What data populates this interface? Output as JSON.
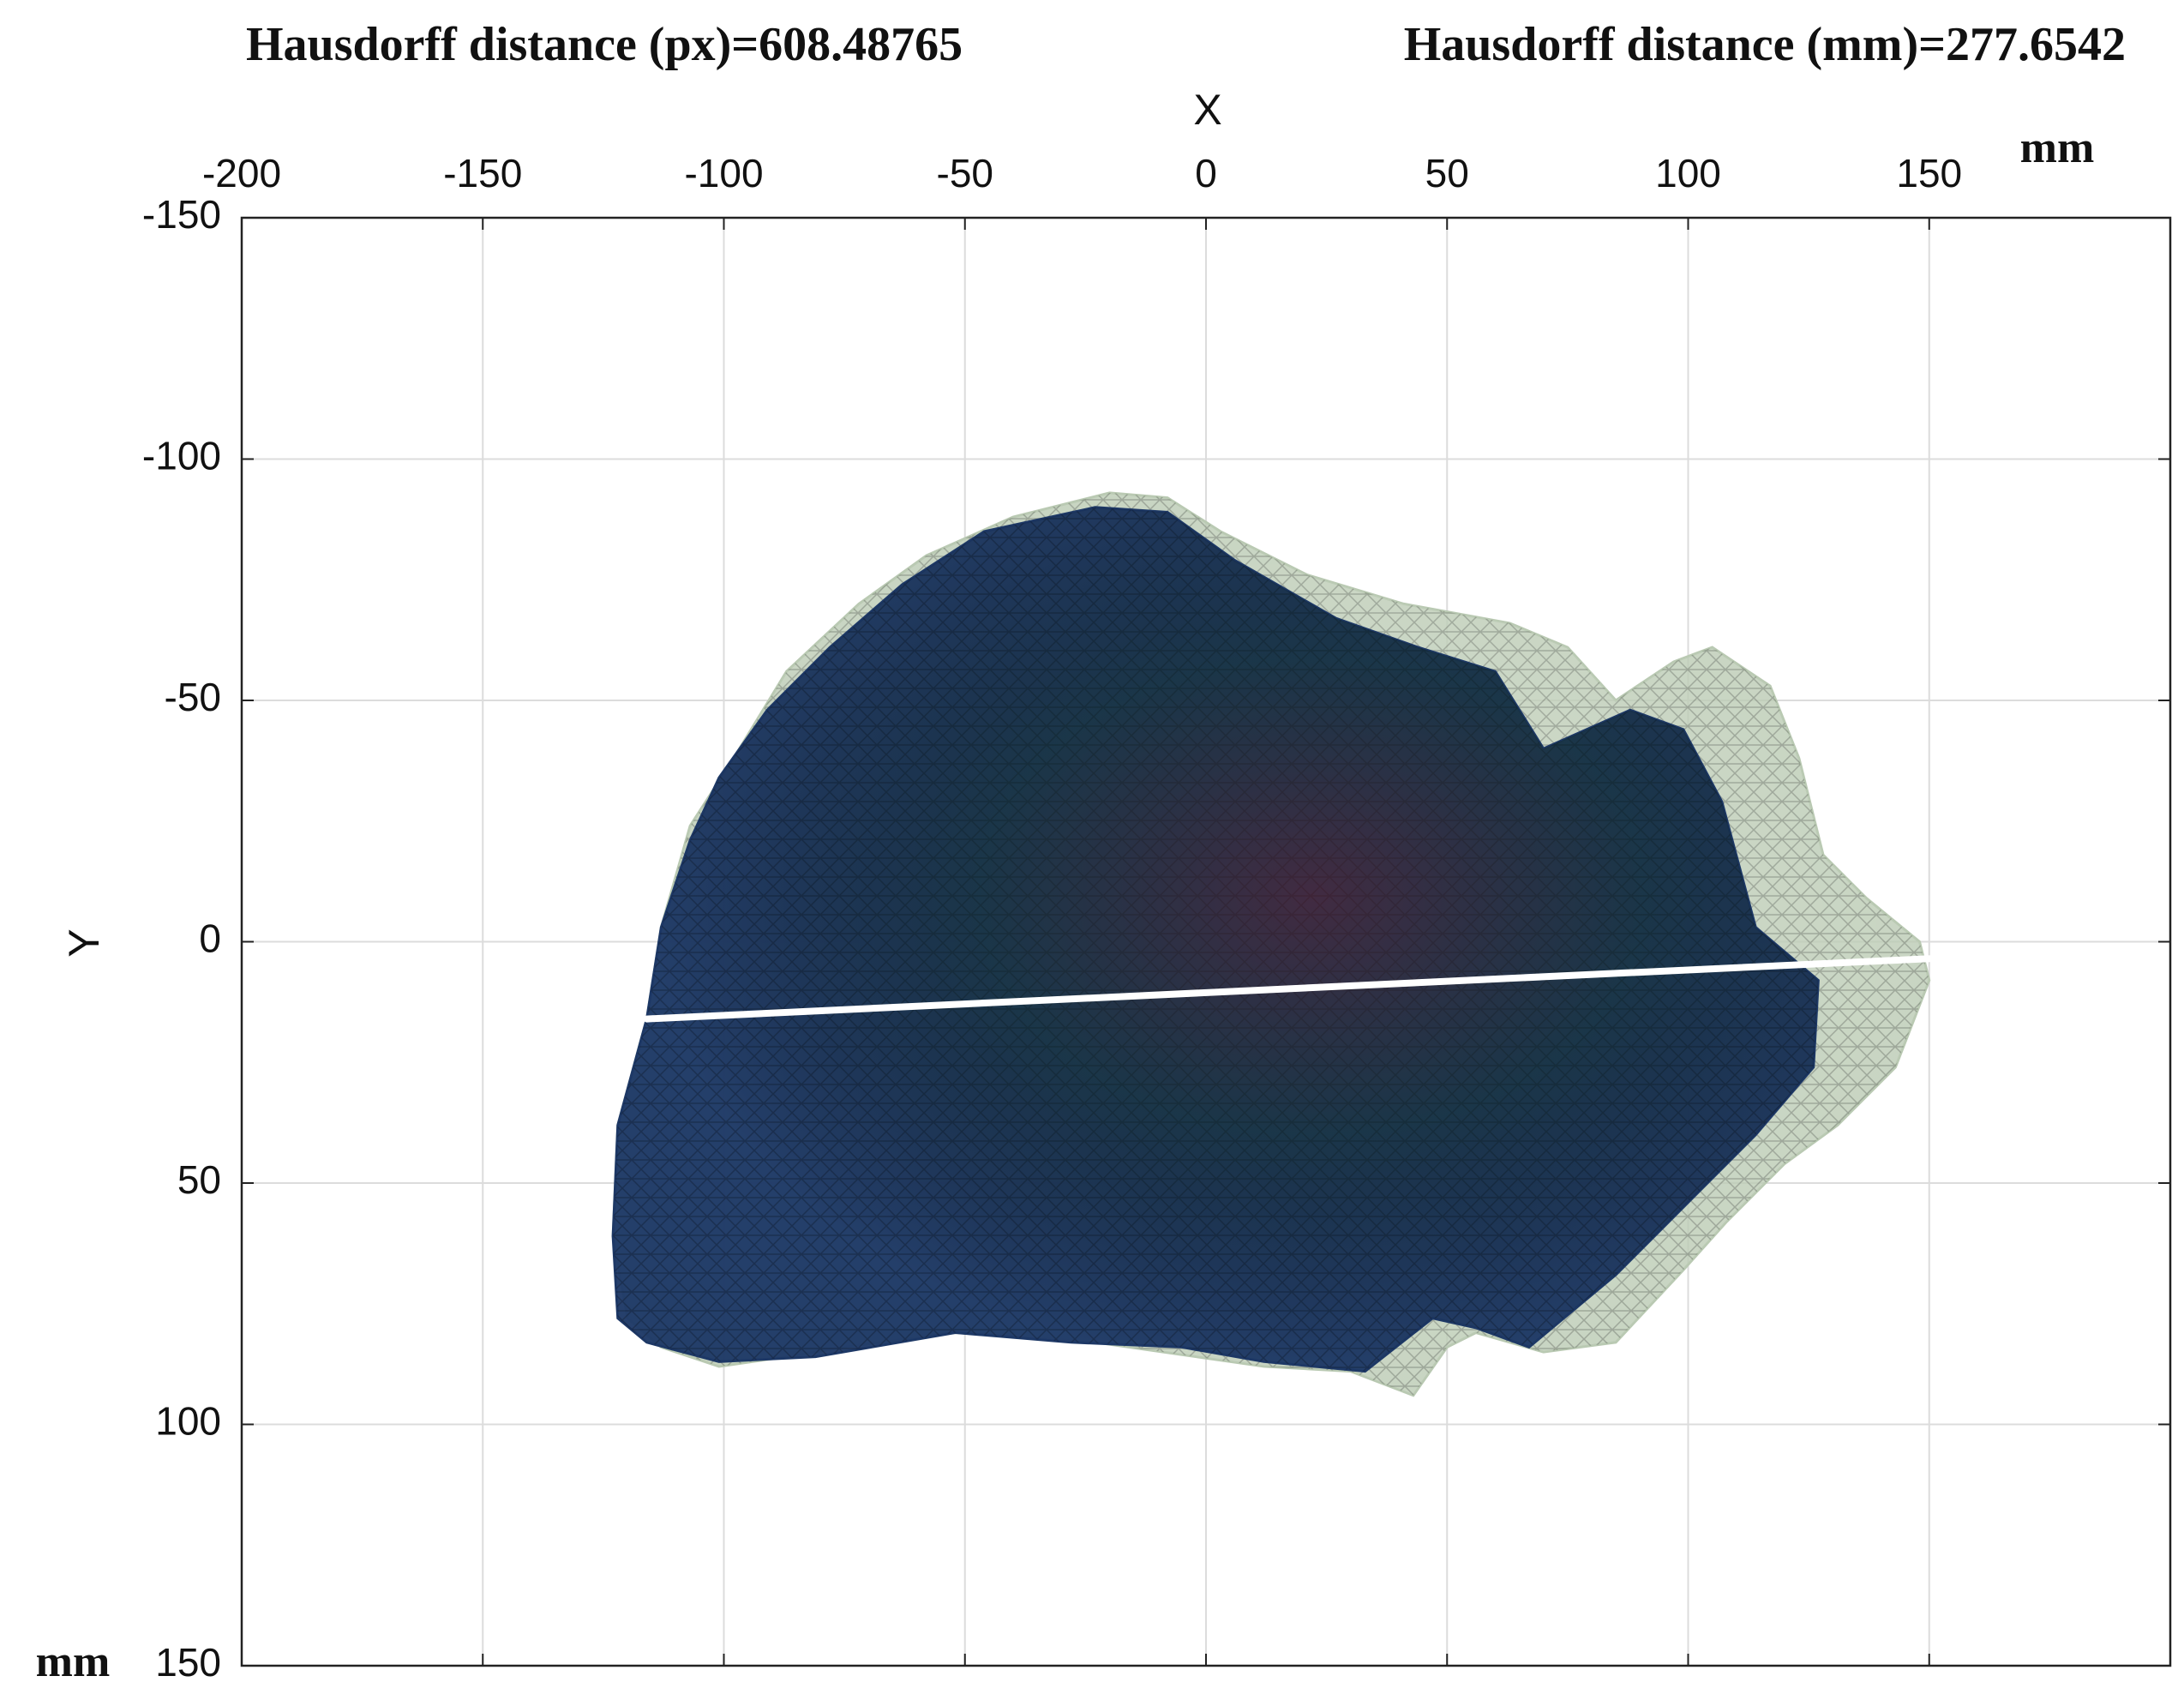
{
  "chart_data": {
    "type": "polygon",
    "titles": [
      "Hausdorff distance (px)=608.48765",
      "Hausdorff distance (mm)=277.6542"
    ],
    "xlabel": "X",
    "ylabel": "Y",
    "x_unit": "mm",
    "y_unit": "mm",
    "x_axis_location": "top",
    "y_reversed": true,
    "xlim": [
      -200,
      200
    ],
    "ylim": [
      -150,
      150
    ],
    "xticks": [
      -200,
      -150,
      -100,
      -50,
      0,
      50,
      100,
      150
    ],
    "yticks": [
      -150,
      -100,
      -50,
      0,
      50,
      100,
      150
    ],
    "grid": true,
    "shapes": [
      {
        "color": "#b9c9b2",
        "opacity": 0.8,
        "x": [
          -116,
          -113,
          -107,
          -98,
          -87,
          -72,
          -58,
          -40,
          -20,
          -8,
          3,
          21,
          41,
          63,
          75,
          85,
          97,
          105,
          117,
          123,
          128,
          137,
          148,
          150,
          143,
          131,
          120,
          108,
          99,
          85,
          70,
          56,
          50,
          43,
          30,
          12,
          -2,
          -23,
          -52,
          -75,
          -87,
          -101,
          -113,
          -120,
          -123,
          -122
        ],
        "y": [
          16,
          -3,
          -24,
          -38,
          -56,
          -70,
          -80,
          -88,
          -93,
          -92,
          -85,
          -76,
          -70,
          -66,
          -61,
          -50,
          -58,
          -61,
          -53,
          -38,
          -18,
          -9,
          0,
          8,
          26,
          38,
          46,
          58,
          68,
          83,
          85,
          81,
          84,
          94,
          89,
          88,
          86,
          83,
          81,
          84,
          86,
          88,
          84,
          78,
          61,
          38
        ]
      },
      {
        "color": "#1d3866",
        "opacity": 0.96,
        "x": [
          -116,
          -113,
          -107,
          -101,
          -91,
          -78,
          -63,
          -46,
          -23,
          -8,
          6,
          27,
          44,
          60,
          70,
          88,
          99,
          107,
          114,
          127,
          126,
          114,
          99,
          85,
          67,
          56,
          47,
          33,
          12,
          -5,
          -28,
          -52,
          -81,
          -101,
          -116,
          -122,
          -123,
          -122
        ],
        "y": [
          16,
          -3,
          -21,
          -34,
          -48,
          -61,
          -74,
          -85,
          -90,
          -89,
          -79,
          -67,
          -61,
          -56,
          -40,
          -48,
          -44,
          -29,
          -3,
          8,
          26,
          40,
          55,
          69,
          84,
          80,
          78,
          89,
          87,
          84,
          83,
          81,
          86,
          87,
          83,
          78,
          61,
          38
        ]
      }
    ],
    "series": [
      {
        "color": "#ffffff",
        "x": [
          -116,
          150
        ],
        "y": [
          16,
          3.5
        ]
      }
    ]
  }
}
